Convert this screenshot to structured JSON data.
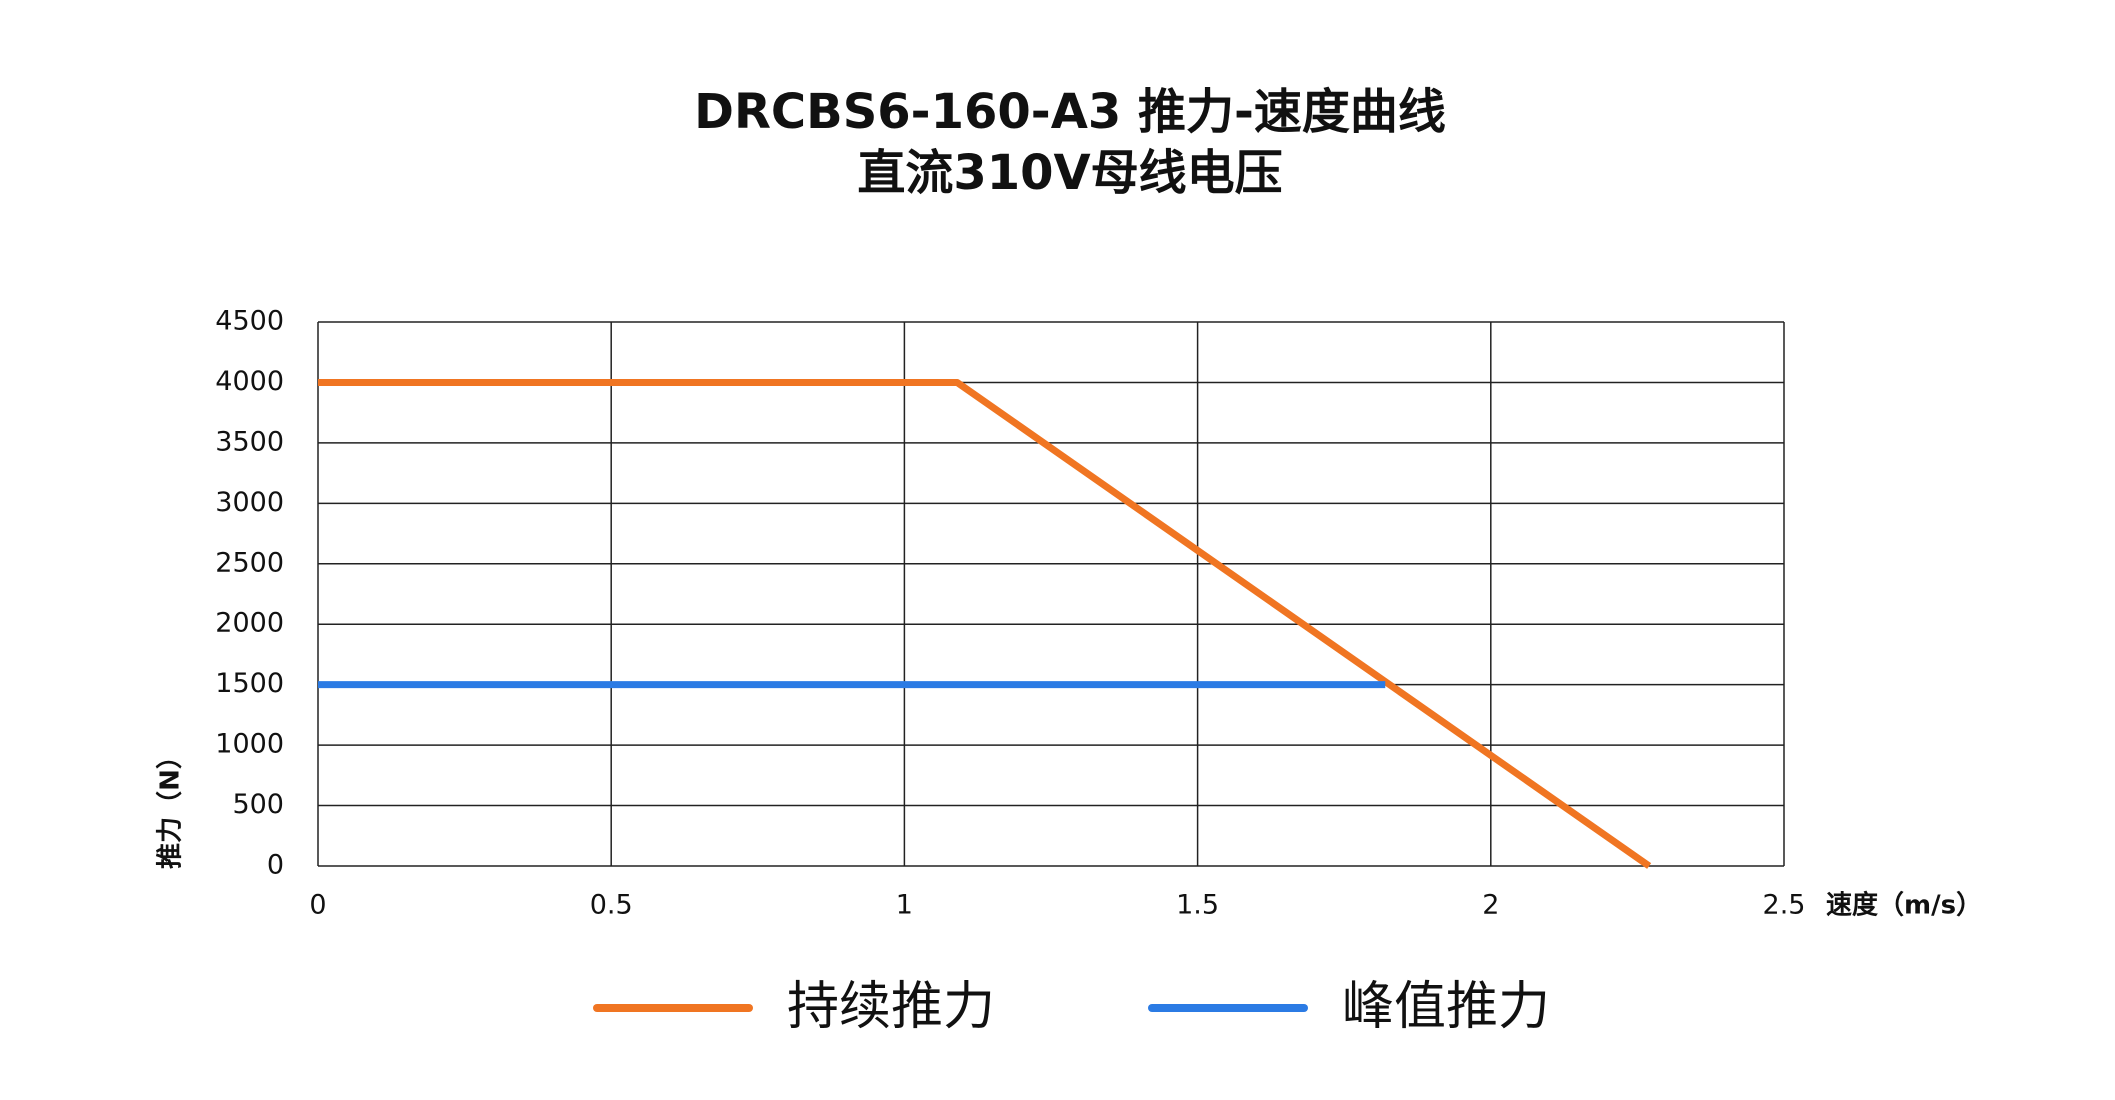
{
  "chart_data": {
    "type": "line",
    "title": "DRCBS6-160-A3 推力-速度曲线",
    "subtitle": "直流310V母线电压",
    "x_label": "速度（m/s）",
    "y_label": "推力（N）",
    "xlim": [
      0,
      2.5
    ],
    "xticks": [
      0,
      0.5,
      1,
      1.5,
      2,
      2.5
    ],
    "ylim": [
      0,
      4500
    ],
    "yticks": [
      0,
      500,
      1000,
      1500,
      2000,
      2500,
      3000,
      3500,
      4000,
      4500
    ],
    "grid": true,
    "series": [
      {
        "name": "持续推力",
        "color": "#f07522",
        "x": [
          0,
          1.09,
          2.27
        ],
        "values": [
          4000,
          4000,
          0
        ]
      },
      {
        "name": "峰值推力",
        "color": "#2b7be4",
        "x": [
          0,
          1.82
        ],
        "values": [
          1500,
          1500
        ]
      }
    ]
  }
}
